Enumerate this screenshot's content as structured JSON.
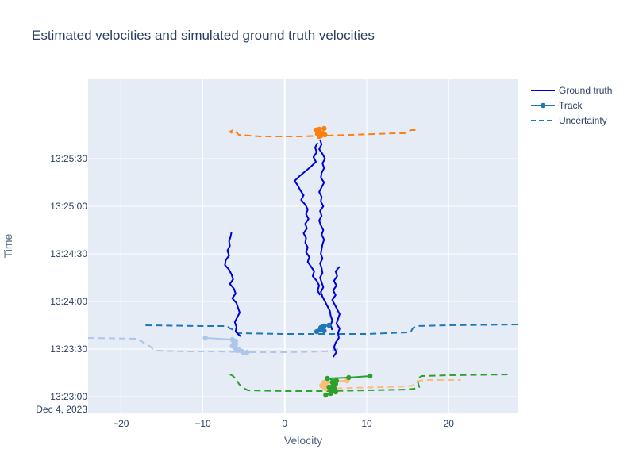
{
  "chart_data": {
    "type": "line",
    "title": "Estimated velocities and simulated ground truth velocities",
    "xlabel": "Velocity",
    "ylabel": "Time",
    "xlim": [
      -24,
      28.5
    ],
    "ylim_seconds": [
      -10,
      200
    ],
    "x_ticks": [
      -20,
      -10,
      0,
      10,
      20
    ],
    "x_tick_labels": [
      "−20",
      "−10",
      "0",
      "10",
      "20"
    ],
    "y_ticks": [
      {
        "value": 0,
        "label": "13:23:00",
        "sublabel": "Dec 4, 2023"
      },
      {
        "value": 30,
        "label": "13:23:30",
        "sublabel": ""
      },
      {
        "value": 60,
        "label": "13:24:00",
        "sublabel": ""
      },
      {
        "value": 90,
        "label": "13:24:30",
        "sublabel": ""
      },
      {
        "value": 120,
        "label": "13:25:00",
        "sublabel": ""
      },
      {
        "value": 150,
        "label": "13:25:30",
        "sublabel": ""
      }
    ],
    "grid": true,
    "legend_position": "top-right",
    "legend": [
      {
        "label": "Ground truth",
        "style": "solid-line",
        "color": "#0000dd"
      },
      {
        "label": "Track",
        "style": "line-marker",
        "color": "#1f77b4"
      },
      {
        "label": "Uncertainty",
        "style": "dashed-line",
        "color": "#1f77b4"
      }
    ],
    "colors": {
      "ground_truth": "#0000dd",
      "plot_bg": "#e5ecf6",
      "grid": "#ffffff",
      "track_orange": "#ff7f0e",
      "track_blue": "#1f77b4",
      "track_lightblue": "#aec7e8",
      "track_peach": "#ffbb78",
      "track_green": "#2ca02c"
    },
    "ground_truth": [
      {
        "x": [
          -6.5,
          -6.6,
          -6.8,
          -6.7,
          -7.0,
          -6.8,
          -7.2,
          -7.3,
          -6.8,
          -6.5,
          -6.3,
          -6.7,
          -6.2,
          -6.0,
          -6.4,
          -5.9,
          -5.7,
          -5.5,
          -5.8,
          -6.1,
          -5.9,
          -6.0,
          -5.4
        ],
        "y": [
          104,
          101,
          98,
          95,
          92,
          89,
          86,
          83,
          80,
          77,
          74,
          71,
          68,
          65,
          62,
          59,
          56,
          53,
          50,
          47,
          44,
          41,
          38
        ]
      },
      {
        "x": [
          4.0,
          3.7,
          3.9,
          3.5,
          3.8,
          3.2,
          2.5,
          1.8,
          1.2,
          1.6,
          1.9,
          2.3,
          2.0,
          2.5,
          2.8,
          2.6,
          2.9,
          2.5,
          2.7,
          2.3,
          2.6,
          2.5,
          2.8,
          2.6,
          3.0,
          2.8,
          3.2,
          3.6,
          3.4,
          3.9,
          4.2,
          4.0,
          4.3
        ],
        "y": [
          160,
          157,
          154,
          151,
          148,
          145,
          142,
          139,
          136,
          133,
          130,
          127,
          124,
          121,
          118,
          115,
          112,
          109,
          106,
          103,
          100,
          97,
          94,
          91,
          88,
          85,
          82,
          79,
          76,
          73,
          70,
          67,
          64
        ]
      },
      {
        "x": [
          4.3,
          4.5,
          4.2,
          4.6,
          4.9,
          4.6,
          4.8,
          4.5,
          4.4,
          4.8,
          4.5,
          4.2,
          4.5,
          4.4,
          4.7,
          4.3,
          4.5,
          4.2,
          4.4,
          4.7,
          4.5,
          4.8,
          4.6,
          4.5,
          4.4,
          4.6,
          4.3,
          4.5,
          4.6,
          4.3,
          4.5,
          4.7,
          4.4,
          4.6,
          4.9,
          5.2,
          5.5,
          5.6,
          5.8,
          5.6,
          5.8
        ],
        "y": [
          162,
          159,
          156,
          153,
          150,
          147,
          144,
          141,
          138,
          135,
          132,
          129,
          126,
          123,
          120,
          117,
          114,
          111,
          108,
          105,
          102,
          99,
          96,
          93,
          90,
          87,
          84,
          81,
          78,
          75,
          72,
          69,
          66,
          63,
          60,
          57,
          54,
          51,
          48,
          45,
          42
        ]
      },
      {
        "x": [
          6.7,
          6.2,
          6.4,
          6.0,
          6.3,
          5.9,
          6.2,
          5.8,
          6.1,
          6.4,
          6.7,
          6.5,
          6.3,
          6.7,
          6.5,
          6.6,
          6.2,
          6.0,
          6.3,
          5.9
        ],
        "y": [
          82,
          79,
          76,
          73,
          70,
          67,
          64,
          61,
          58,
          55,
          52,
          49,
          46,
          43,
          40,
          37,
          34,
          31,
          28,
          25
        ]
      }
    ],
    "tracks": [
      {
        "color": "orange",
        "points": {
          "x": [
            4.8,
            4.2,
            3.8,
            4.2,
            4.0,
            4.6,
            4.0,
            4.9,
            4.4,
            4.2
          ],
          "y": [
            169,
            168.5,
            168,
            167.5,
            167,
            166,
            165.5,
            165,
            164.5,
            164
          ]
        }
      },
      {
        "color": "blue",
        "points": {
          "x": [
            5.4,
            4.8,
            4.6,
            4.4,
            4.4,
            4.6,
            4.3,
            4.8,
            3.9
          ],
          "y": [
            45,
            44.5,
            44,
            43.5,
            43,
            42.5,
            42,
            41.5,
            41
          ]
        }
      },
      {
        "color": "lightblue",
        "points": {
          "x": [
            -9.7,
            -6.4,
            -6.0,
            -6.2,
            -6.0,
            -6.4,
            -6.1,
            -6.0,
            -5.8,
            -5.6,
            -5.8,
            -5.2,
            -4.6,
            -5.0
          ],
          "y": [
            37,
            36,
            35,
            34,
            33,
            32,
            31,
            30.5,
            30,
            29.5,
            29,
            28.5,
            28,
            27.5
          ]
        }
      },
      {
        "color": "peach",
        "points": {
          "x": [
            7.6,
            5.2,
            4.8,
            5.0,
            4.5,
            4.8,
            5.4,
            5.0
          ],
          "y": [
            10,
            9.5,
            9,
            8,
            7,
            6,
            5.5,
            5
          ]
        }
      },
      {
        "color": "green",
        "points": {
          "x": [
            10.4,
            7.8,
            5.2,
            6.3,
            5.8,
            6.2,
            5.9,
            5.4,
            6.1,
            5.8,
            6.2,
            5.6,
            5.0
          ],
          "y": [
            13,
            12,
            11.5,
            10,
            9,
            8,
            7,
            6,
            5,
            4,
            3,
            2,
            1
          ]
        }
      }
    ],
    "uncertainty": [
      {
        "color": "orange",
        "x": [
          -6.3,
          -6.7,
          -6.4,
          -6.0,
          -5.6,
          -3.0,
          2.0,
          5.0,
          8.0,
          11.0,
          13.5,
          14.6,
          15.0,
          15.4,
          16.0
        ],
        "y": [
          168,
          167,
          166,
          167,
          165,
          164,
          164,
          164.5,
          165,
          165.5,
          166,
          166,
          167,
          168,
          168
        ]
      },
      {
        "color": "blue",
        "x": [
          -17,
          -10,
          -7,
          -6.7,
          -6.2,
          -5.8,
          0,
          5,
          10,
          15,
          15.4,
          15.6,
          16.0,
          20,
          28.5
        ],
        "y": [
          45,
          44.5,
          44.5,
          43,
          42,
          40,
          39.5,
          39.5,
          39.5,
          40.5,
          41,
          43,
          44.5,
          45,
          45.5
        ]
      },
      {
        "color": "lightblue",
        "x": [
          -24,
          -18,
          -17.5,
          -17,
          -16.5,
          -16.2,
          -15.8,
          -12,
          -8,
          -5,
          0,
          5,
          6.5
        ],
        "y": [
          37,
          36.5,
          35,
          33,
          32,
          30.5,
          29,
          28.5,
          28.5,
          28,
          28,
          28.5,
          30
        ]
      },
      {
        "color": "peach",
        "x": [
          5.0,
          8.0,
          12.0,
          15.0,
          15.6,
          16.0,
          16.3,
          17.5,
          19.0,
          21.5
        ],
        "y": [
          5,
          5.5,
          6,
          6.5,
          7,
          8.5,
          10,
          10.5,
          10.5,
          10.5
        ]
      },
      {
        "color": "green",
        "x": [
          -6.7,
          -6.3,
          -5.8,
          -5.6,
          -5.2,
          -4.5,
          0,
          5,
          10,
          15,
          15.8,
          16.4,
          16.2,
          16.4,
          16.7,
          20,
          27.5
        ],
        "y": [
          14,
          13,
          10,
          8,
          6,
          4,
          3.5,
          3.5,
          4,
          4.5,
          5,
          6,
          10,
          12,
          13,
          13.5,
          14
        ]
      }
    ]
  }
}
